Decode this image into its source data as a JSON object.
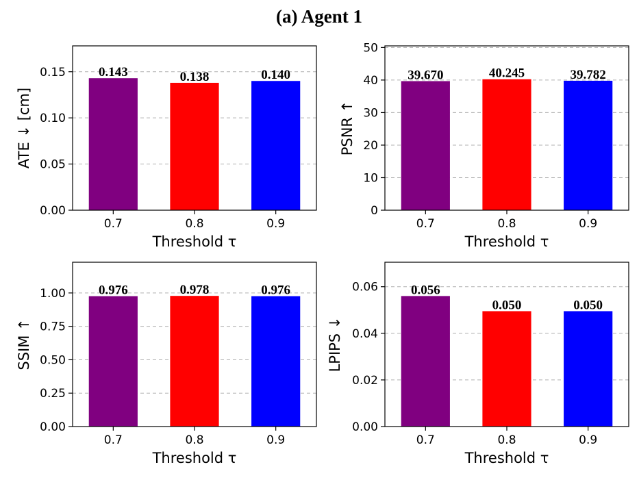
{
  "figure": {
    "title": "(a) Agent 1"
  },
  "chart_data": [
    {
      "type": "bar",
      "categories": [
        "0.7",
        "0.8",
        "0.9"
      ],
      "values": [
        0.143,
        0.138,
        0.14
      ],
      "value_labels": [
        "0.143",
        "0.138",
        "0.140"
      ],
      "colors": [
        "#800080",
        "#ff0000",
        "#0000ff"
      ],
      "xlabel": "Threshold τ",
      "ylabel": "ATE ↓  [cm]",
      "ylim": [
        0,
        0.178
      ],
      "yticks": [
        0.0,
        0.05,
        0.1,
        0.15
      ],
      "ytick_labels": [
        "0.00",
        "0.05",
        "0.10",
        "0.15"
      ],
      "grid": true
    },
    {
      "type": "bar",
      "categories": [
        "0.7",
        "0.8",
        "0.9"
      ],
      "values": [
        39.67,
        40.245,
        39.782
      ],
      "value_labels": [
        "39.670",
        "40.245",
        "39.782"
      ],
      "colors": [
        "#800080",
        "#ff0000",
        "#0000ff"
      ],
      "xlabel": "Threshold τ",
      "ylabel": "PSNR ↑",
      "ylim": [
        0,
        50.5
      ],
      "yticks": [
        0,
        10,
        20,
        30,
        40,
        50
      ],
      "ytick_labels": [
        "0",
        "10",
        "20",
        "30",
        "40",
        "50"
      ],
      "grid": true
    },
    {
      "type": "bar",
      "categories": [
        "0.7",
        "0.8",
        "0.9"
      ],
      "values": [
        0.976,
        0.978,
        0.976
      ],
      "value_labels": [
        "0.976",
        "0.978",
        "0.976"
      ],
      "colors": [
        "#800080",
        "#ff0000",
        "#0000ff"
      ],
      "xlabel": "Threshold τ",
      "ylabel": "SSIM ↑",
      "ylim": [
        0,
        1.23
      ],
      "yticks": [
        0.0,
        0.25,
        0.5,
        0.75,
        1.0
      ],
      "ytick_labels": [
        "0.00",
        "0.25",
        "0.50",
        "0.75",
        "1.00"
      ],
      "grid": true
    },
    {
      "type": "bar",
      "categories": [
        "0.7",
        "0.8",
        "0.9"
      ],
      "values": [
        0.056,
        0.0495,
        0.0495
      ],
      "value_labels": [
        "0.056",
        "0.050",
        "0.050"
      ],
      "colors": [
        "#800080",
        "#ff0000",
        "#0000ff"
      ],
      "xlabel": "Threshold τ",
      "ylabel": "LPIPS ↓",
      "ylim": [
        0,
        0.0705
      ],
      "yticks": [
        0.0,
        0.02,
        0.04,
        0.06
      ],
      "ytick_labels": [
        "0.00",
        "0.02",
        "0.04",
        "0.06"
      ],
      "grid": true
    }
  ]
}
